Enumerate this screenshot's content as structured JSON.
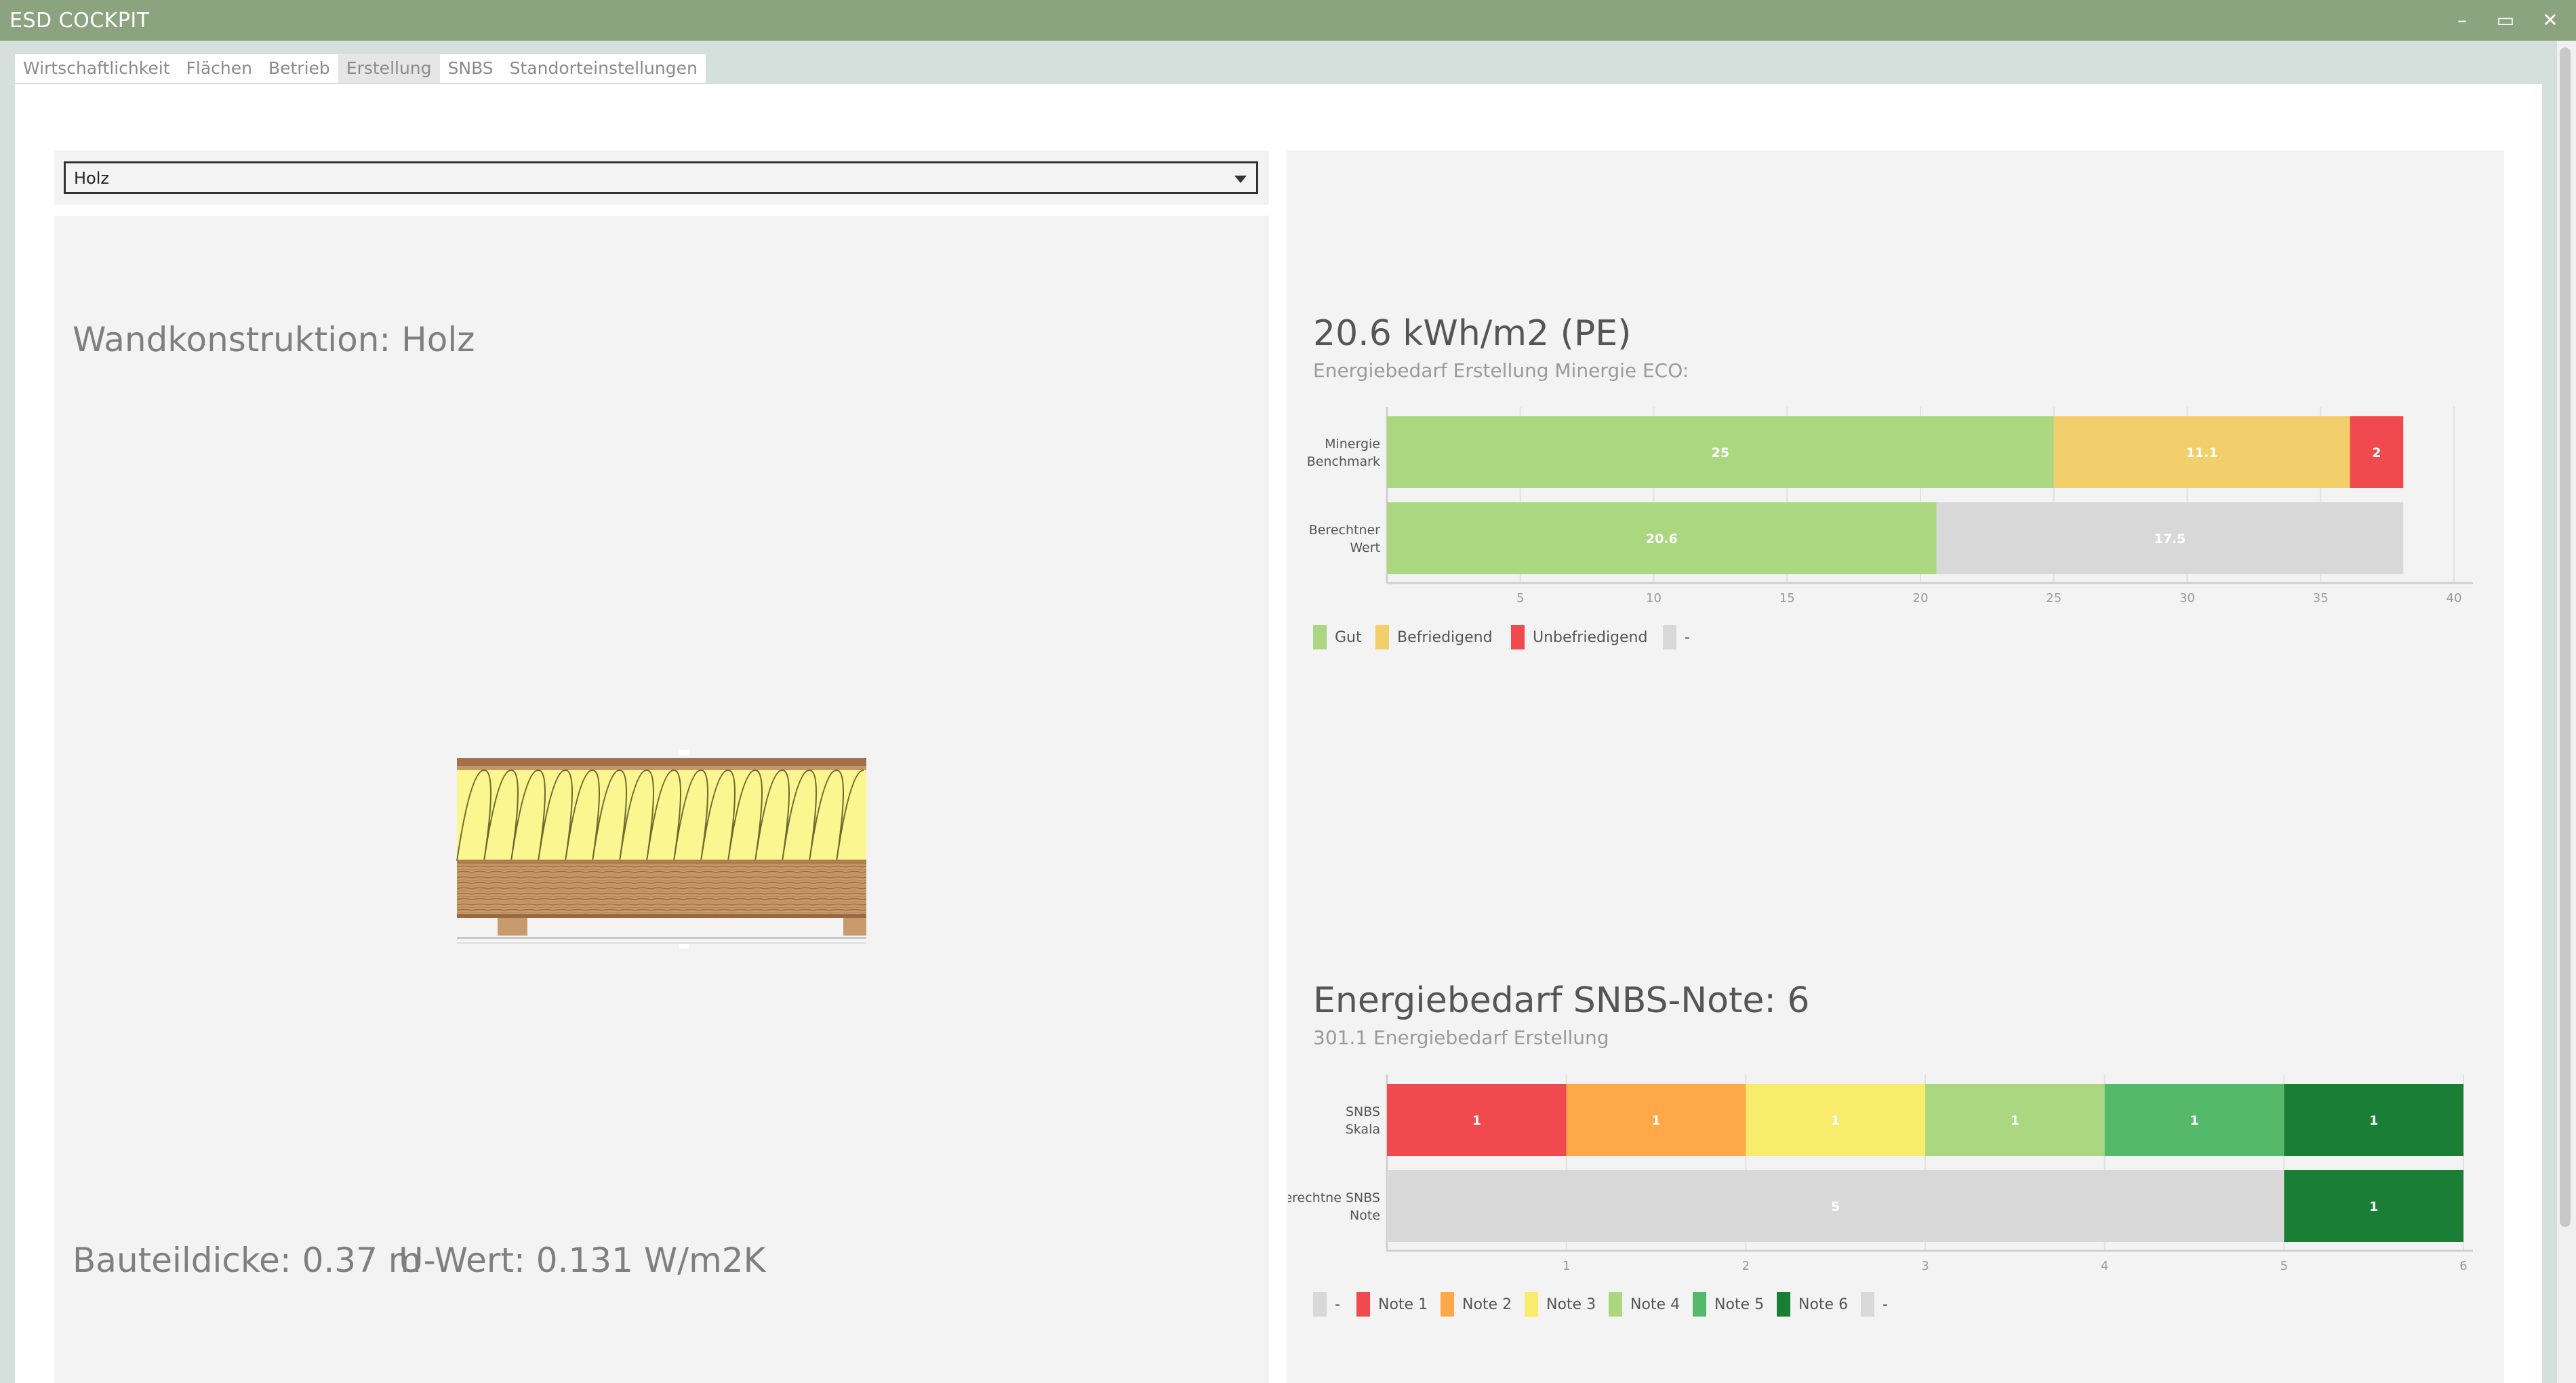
{
  "window": {
    "title": "ESD COCKPIT",
    "minimize": "–",
    "maximize": "▭",
    "close": "✕"
  },
  "tabs": [
    "Wirtschaftlichkeit",
    "Flächen",
    "Betrieb",
    "Erstellung",
    "SNBS",
    "Standorteinstellungen"
  ],
  "active_tab": "Erstellung",
  "left": {
    "dropdown_value": "Holz",
    "heading": "Wandkonstruktion: Holz",
    "thickness": "Bauteildicke: 0.37 m",
    "uvalue": "U-Wert: 0.131 W/m2K"
  },
  "right": {
    "chart1_value": "20.6 kWh/m2 (PE)",
    "chart1_subtitle": "Energiebedarf Erstellung Minergie ECO:",
    "chart2_value": "Energiebedarf SNBS-Note: 6",
    "chart2_subtitle": "301.1 Energiebedarf Erstellung"
  },
  "chart_data": [
    {
      "type": "bar",
      "orientation": "horizontal",
      "stacked": true,
      "categories": [
        "Minergie Benchmark",
        "Berechtner Wert"
      ],
      "xlim": [
        0,
        40
      ],
      "x_ticks": [
        5,
        10,
        15,
        20,
        25,
        30,
        35,
        40
      ],
      "series": [
        {
          "name": "Gut",
          "color": "#aad780",
          "values": [
            25,
            20.6
          ]
        },
        {
          "name": "Befriedigend",
          "color": "#f2cf6a",
          "values": [
            11.1,
            0
          ]
        },
        {
          "name": "Unbefriedigend",
          "color": "#f04a4f",
          "values": [
            2,
            0
          ]
        },
        {
          "name": "-",
          "color": "#d8d8d8",
          "values": [
            0,
            17.5
          ]
        }
      ]
    },
    {
      "type": "bar",
      "orientation": "horizontal",
      "stacked": true,
      "categories": [
        "SNBS Skala",
        "Berechtne SNBS Note"
      ],
      "xlim": [
        0,
        6
      ],
      "x_ticks": [
        1,
        2,
        3,
        4,
        5,
        6
      ],
      "series": [
        {
          "name": "-",
          "color": "#d8d8d8",
          "values": [
            0,
            5
          ]
        },
        {
          "name": "Note 1",
          "color": "#f04a4f",
          "values": [
            1,
            0
          ]
        },
        {
          "name": "Note 2",
          "color": "#fea84a",
          "values": [
            1,
            0
          ]
        },
        {
          "name": "Note 3",
          "color": "#f9ec6c",
          "values": [
            1,
            0
          ]
        },
        {
          "name": "Note 4",
          "color": "#aad780",
          "values": [
            1,
            0
          ]
        },
        {
          "name": "Note 5",
          "color": "#55b96b",
          "values": [
            1,
            0
          ]
        },
        {
          "name": "Note 6",
          "color": "#1a7e34",
          "values": [
            1,
            1
          ]
        },
        {
          "name": "-",
          "color": "#d8d8d8",
          "values": [
            0,
            0
          ]
        }
      ]
    }
  ]
}
